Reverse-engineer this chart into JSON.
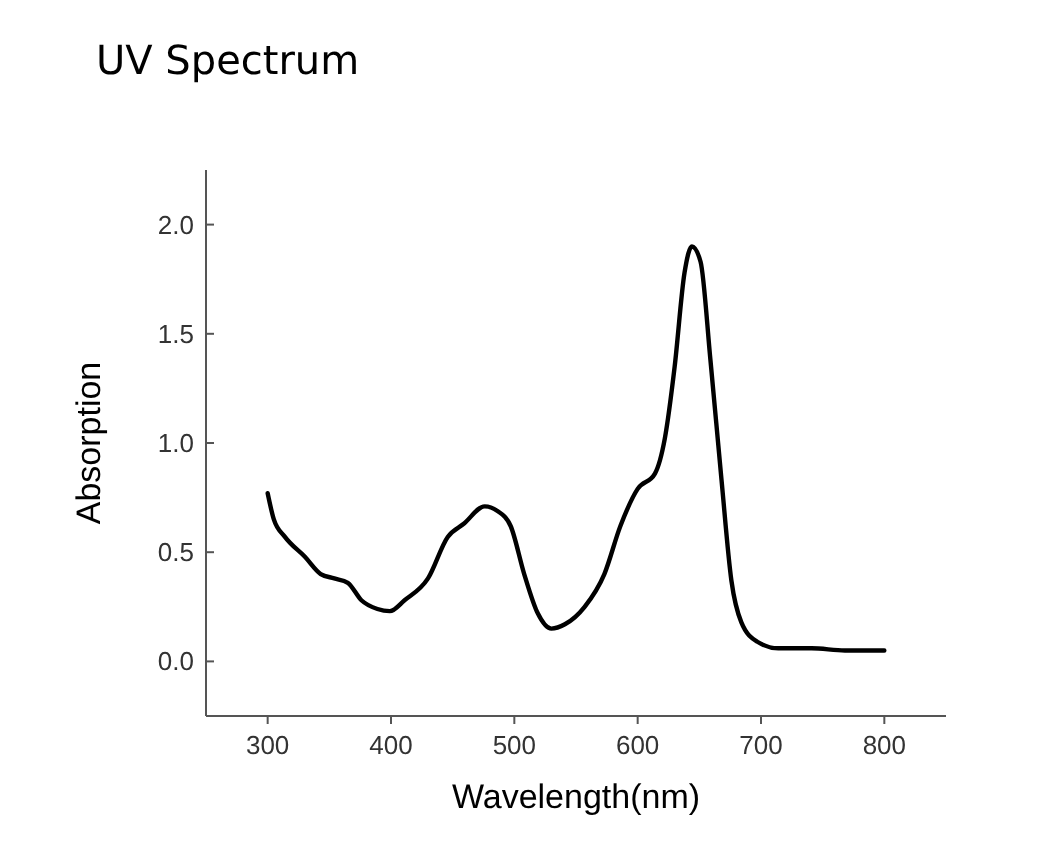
{
  "chart_data": {
    "type": "line",
    "title": "UV Spectrum",
    "xlabel": "Wavelength(nm)",
    "ylabel": "Absorption",
    "xlim": [
      250,
      850
    ],
    "xticks": [
      300,
      400,
      500,
      600,
      700,
      800
    ],
    "ylim": [
      -0.25,
      2.25
    ],
    "yticks": [
      {
        "value": 0,
        "label": "0.0"
      },
      {
        "value": 0.5,
        "label": "0.5"
      },
      {
        "value": 1,
        "label": "1.0"
      },
      {
        "value": 1.5,
        "label": "1.5"
      },
      {
        "value": 2,
        "label": "2.0"
      }
    ],
    "grid": false,
    "marker": "none",
    "line_style": "solid",
    "series": [
      {
        "color": "#000000",
        "x": [
          300,
          305,
          314,
          330,
          343,
          354,
          365,
          376,
          389,
          399,
          411,
          430,
          446,
          459,
          476,
          486,
          497,
          508,
          519,
          530,
          541,
          557,
          573,
          586,
          600,
          614,
          622,
          630,
          638,
          644,
          651,
          659,
          668,
          676,
          684,
          697,
          714,
          741,
          768,
          800
        ],
        "values": [
          0.77,
          0.65,
          0.57,
          0.48,
          0.4,
          0.38,
          0.36,
          0.28,
          0.24,
          0.23,
          0.28,
          0.38,
          0.57,
          0.63,
          0.71,
          0.69,
          0.62,
          0.4,
          0.22,
          0.15,
          0.17,
          0.25,
          0.4,
          0.62,
          0.79,
          0.86,
          1.02,
          1.35,
          1.78,
          1.9,
          1.83,
          1.38,
          0.83,
          0.37,
          0.18,
          0.09,
          0.06,
          0.06,
          0.05,
          0.05
        ]
      }
    ]
  }
}
